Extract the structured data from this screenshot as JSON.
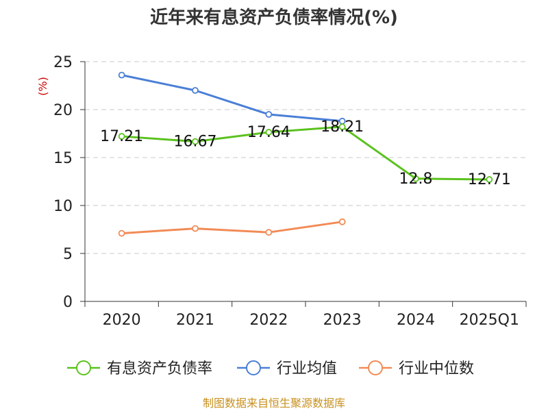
{
  "chart_data": {
    "type": "line",
    "title": "近年来有息资产负债率情况(%)",
    "ylabel": "(%)",
    "xlabel": "",
    "categories": [
      "2020",
      "2021",
      "2022",
      "2023",
      "2024",
      "2025Q1"
    ],
    "ylim": [
      0,
      25
    ],
    "yticks": [
      0,
      5,
      10,
      15,
      20,
      25
    ],
    "grid": true,
    "legend_position": "bottom",
    "series": [
      {
        "name": "有息资产负债率",
        "color": "#5ac21e",
        "values": [
          17.21,
          16.67,
          17.64,
          18.21,
          12.8,
          12.71
        ],
        "labels": [
          "17.21",
          "16.67",
          "17.64",
          "18.21",
          "12.8",
          "12.71"
        ]
      },
      {
        "name": "行业均值",
        "color": "#4a7fd6",
        "values": [
          23.6,
          22.0,
          19.5,
          18.8,
          null,
          null
        ]
      },
      {
        "name": "行业中位数",
        "color": "#f28b56",
        "values": [
          7.1,
          7.6,
          7.2,
          8.3,
          null,
          null
        ]
      }
    ],
    "source": "制图数据来自恒生聚源数据库"
  }
}
